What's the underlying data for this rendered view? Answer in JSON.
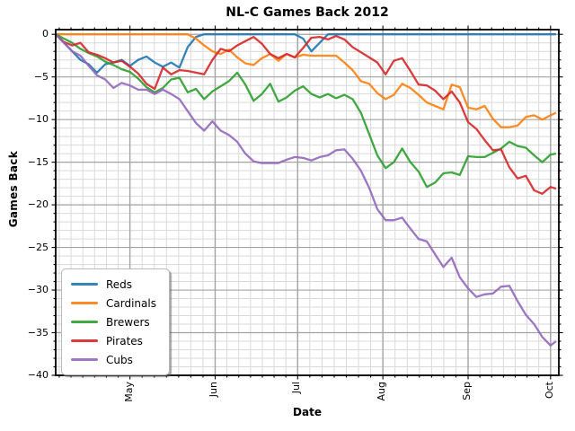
{
  "title": "NL-C Games Back 2012",
  "xlabel": "Date",
  "ylabel": "Games Back",
  "legend": {
    "position": "lower left",
    "entries": [
      "Reds",
      "Cardinals",
      "Brewers",
      "Pirates",
      "Cubs"
    ]
  },
  "axes": {
    "x_range_days": [
      0,
      183
    ],
    "ylim": [
      -40,
      0.55
    ],
    "grid": "both",
    "background": "#ffffff",
    "spine_color": "#000000",
    "major_grid_color": "#a3a3a3",
    "minor_grid_color": "#d9d9d9"
  },
  "yticks": [
    {
      "label": "0",
      "value": 0
    },
    {
      "label": "−5",
      "value": -5
    },
    {
      "label": "−10",
      "value": -10
    },
    {
      "label": "−15",
      "value": -15
    },
    {
      "label": "−20",
      "value": -20
    },
    {
      "label": "−25",
      "value": -25
    },
    {
      "label": "−30",
      "value": -30
    },
    {
      "label": "−35",
      "value": -35
    },
    {
      "label": "−40",
      "value": -40
    }
  ],
  "xticks": [
    {
      "label": "May",
      "day": 27
    },
    {
      "label": "Jun",
      "day": 58
    },
    {
      "label": "Jul",
      "day": 88
    },
    {
      "label": "Aug",
      "day": 119
    },
    {
      "label": "Sep",
      "day": 150
    },
    {
      "label": "Oct",
      "day": 180
    }
  ],
  "chart_data": {
    "type": "line",
    "title": "NL-C Games Back 2012",
    "xlabel": "Date",
    "ylabel": "Games Back",
    "x_unit": "days since season start (Apr 4, 2012), samples every 3 days",
    "x": [
      0,
      3,
      6,
      9,
      12,
      15,
      18,
      21,
      24,
      27,
      30,
      33,
      36,
      39,
      42,
      45,
      48,
      51,
      54,
      57,
      60,
      63,
      66,
      69,
      72,
      75,
      78,
      81,
      84,
      87,
      90,
      93,
      96,
      99,
      102,
      105,
      108,
      111,
      114,
      117,
      120,
      123,
      126,
      129,
      132,
      135,
      138,
      141,
      144,
      147,
      150,
      153,
      156,
      159,
      162,
      165,
      168,
      171,
      174,
      177,
      180,
      182
    ],
    "month_starts_days": {
      "Apr": -3,
      "May": 27,
      "Jun": 58,
      "Jul": 88,
      "Aug": 119,
      "Sep": 150,
      "Oct": 180,
      "Nov": 211
    },
    "ylim": [
      -40,
      0.55
    ],
    "legend_position": "lower left",
    "series": [
      {
        "name": "Reds",
        "color": "#1f77b4",
        "values": [
          0,
          -1,
          -2,
          -3,
          -3.5,
          -4.5,
          -3.5,
          -3.3,
          -3,
          -3.7,
          -3,
          -2.6,
          -3.3,
          -3.8,
          -3.3,
          -3.9,
          -1.5,
          -0.3,
          0,
          0,
          0,
          0,
          0,
          0,
          0,
          0,
          0,
          0,
          0,
          0,
          -0.5,
          -2,
          -1,
          0,
          0,
          0,
          0,
          0,
          0,
          0,
          0,
          0,
          0,
          0,
          0,
          0,
          0,
          0,
          0,
          0,
          0,
          0,
          0,
          0,
          0,
          0,
          0,
          0,
          0,
          0,
          0,
          0
        ]
      },
      {
        "name": "Cardinals",
        "color": "#ff7f0e",
        "values": [
          0,
          0,
          0,
          0,
          0,
          0,
          0,
          0,
          0,
          0,
          0,
          0,
          0,
          0,
          0,
          0,
          0,
          -0.5,
          -1.3,
          -2,
          -2.3,
          -1.8,
          -2.7,
          -3.4,
          -3.6,
          -2.8,
          -2.3,
          -3.1,
          -2.3,
          -2.7,
          -2.4,
          -2.5,
          -2.5,
          -2.5,
          -2.5,
          -3.3,
          -4.2,
          -5.5,
          -5.8,
          -6.9,
          -7.6,
          -7.1,
          -5.8,
          -6.3,
          -7.1,
          -8,
          -8.4,
          -8.8,
          -5.9,
          -6.2,
          -8.6,
          -8.8,
          -8.4,
          -9.9,
          -10.9,
          -10.9,
          -10.7,
          -9.7,
          -9.5,
          -10,
          -9.5,
          -9.2
        ]
      },
      {
        "name": "Brewers",
        "color": "#2ca02c",
        "values": [
          0,
          -0.5,
          -1,
          -1.7,
          -2.2,
          -2.6,
          -3.2,
          -3.6,
          -4.1,
          -4.4,
          -5.2,
          -6.2,
          -6.8,
          -6.3,
          -5.3,
          -5.1,
          -6.8,
          -6.4,
          -7.6,
          -6.7,
          -6.1,
          -5.5,
          -4.5,
          -5.9,
          -7.8,
          -7,
          -5.8,
          -7.9,
          -7.4,
          -6.6,
          -6.1,
          -7,
          -7.4,
          -7,
          -7.5,
          -7.1,
          -7.6,
          -9.2,
          -11.7,
          -14.2,
          -15.7,
          -15,
          -13.4,
          -15,
          -16.1,
          -17.9,
          -17.4,
          -16.3,
          -16.2,
          -16.5,
          -14.3,
          -14.4,
          -14.4,
          -13.9,
          -13.4,
          -12.6,
          -13.1,
          -13.3,
          -14.2,
          -15,
          -14.1,
          -14
        ]
      },
      {
        "name": "Pirates",
        "color": "#d62728",
        "values": [
          0,
          -0.9,
          -1.3,
          -1,
          -2.1,
          -2.4,
          -2.8,
          -3.3,
          -3.1,
          -3.8,
          -4.6,
          -5.8,
          -6.4,
          -3.9,
          -4.7,
          -4.2,
          -4.3,
          -4.5,
          -4.7,
          -3,
          -1.7,
          -2,
          -1.3,
          -0.8,
          -0.3,
          -1.1,
          -2.3,
          -2.8,
          -2.3,
          -2.7,
          -1.6,
          -0.4,
          -0.3,
          -0.6,
          -0.2,
          -0.6,
          -1.5,
          -2.1,
          -2.7,
          -3.3,
          -4.7,
          -3.1,
          -2.8,
          -4.3,
          -5.9,
          -6,
          -6.6,
          -7.6,
          -6.7,
          -8,
          -10.3,
          -11.1,
          -12.4,
          -13.6,
          -13.5,
          -15.6,
          -16.9,
          -16.6,
          -18.3,
          -18.7,
          -17.9,
          -18.1
        ]
      },
      {
        "name": "Cubs",
        "color": "#9467bd",
        "values": [
          0,
          -1,
          -2,
          -2.5,
          -3.7,
          -4.8,
          -5.3,
          -6.3,
          -5.7,
          -6,
          -6.5,
          -6.5,
          -7,
          -6.5,
          -7,
          -7.6,
          -9,
          -10.4,
          -11.3,
          -10.2,
          -11.3,
          -11.8,
          -12.6,
          -14,
          -14.9,
          -15.1,
          -15.1,
          -15.1,
          -14.7,
          -14.4,
          -14.5,
          -14.8,
          -14.4,
          -14.2,
          -13.6,
          -13.5,
          -14.6,
          -16,
          -18,
          -20.5,
          -21.8,
          -21.8,
          -21.5,
          -22.8,
          -24,
          -24.3,
          -25.8,
          -27.3,
          -26.2,
          -28.5,
          -29.8,
          -30.8,
          -30.5,
          -30.4,
          -29.6,
          -29.5,
          -31.3,
          -32.9,
          -34,
          -35.5,
          -36.5,
          -36
        ]
      }
    ]
  }
}
